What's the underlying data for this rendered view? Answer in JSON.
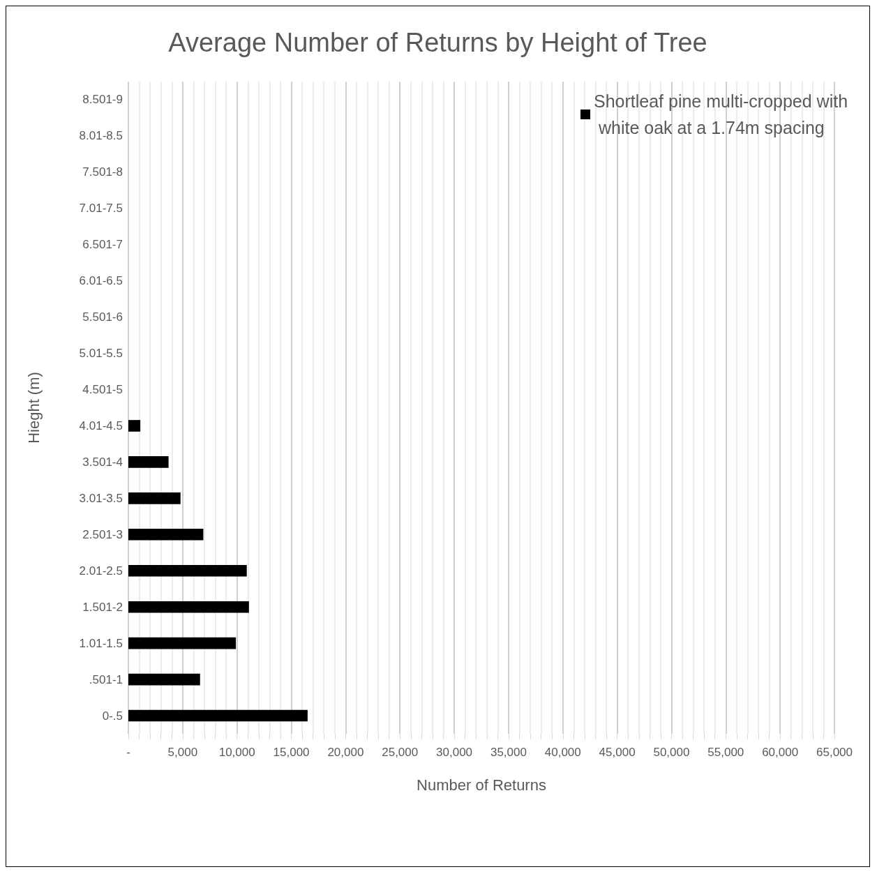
{
  "chart_data": {
    "type": "bar",
    "orientation": "horizontal",
    "title": "Average Number of Returns by Height of Tree",
    "xlabel": "Number of Returns",
    "ylabel": "Hieght (m)",
    "categories": [
      "8.501-9",
      "8.01-8.5",
      "7.501-8",
      "7.01-7.5",
      "6.501-7",
      "6.01-6.5",
      "5.501-6",
      "5.01-5.5",
      "4.501-5",
      "4.01-4.5",
      "3.501-4",
      "3.01-3.5",
      "2.501-3",
      "2.01-2.5",
      "1.501-2",
      "1.01-1.5",
      ".501-1",
      "0-.5"
    ],
    "series": [
      {
        "name": "Shortleaf pine multi-cropped with white oak at a 1.74m spacing",
        "color": "#000000",
        "values": [
          null,
          null,
          null,
          null,
          null,
          null,
          null,
          null,
          null,
          1100,
          3700,
          4800,
          6900,
          10900,
          11100,
          9900,
          6600,
          16500
        ]
      }
    ],
    "xlim": [
      0,
      65000
    ],
    "xticks": [
      {
        "value": 0,
        "label": "-"
      },
      {
        "value": 1000,
        "label": null
      },
      {
        "value": 2000,
        "label": null
      },
      {
        "value": 3000,
        "label": null
      },
      {
        "value": 4000,
        "label": null
      },
      {
        "value": 5000,
        "label": "5,000"
      },
      {
        "value": 6000,
        "label": null
      },
      {
        "value": 7000,
        "label": null
      },
      {
        "value": 8000,
        "label": null
      },
      {
        "value": 9000,
        "label": null
      },
      {
        "value": 10000,
        "label": "10,000"
      },
      {
        "value": 11000,
        "label": null
      },
      {
        "value": 12000,
        "label": null
      },
      {
        "value": 13000,
        "label": null
      },
      {
        "value": 14000,
        "label": null
      },
      {
        "value": 15000,
        "label": "15,000"
      },
      {
        "value": 16000,
        "label": null
      },
      {
        "value": 17000,
        "label": null
      },
      {
        "value": 18000,
        "label": null
      },
      {
        "value": 19000,
        "label": null
      },
      {
        "value": 20000,
        "label": "20,000"
      },
      {
        "value": 21000,
        "label": null
      },
      {
        "value": 22000,
        "label": null
      },
      {
        "value": 23000,
        "label": null
      },
      {
        "value": 24000,
        "label": null
      },
      {
        "value": 25000,
        "label": "25,000"
      },
      {
        "value": 26000,
        "label": null
      },
      {
        "value": 27000,
        "label": null
      },
      {
        "value": 28000,
        "label": null
      },
      {
        "value": 29000,
        "label": null
      },
      {
        "value": 30000,
        "label": "30,000"
      },
      {
        "value": 31000,
        "label": null
      },
      {
        "value": 32000,
        "label": null
      },
      {
        "value": 33000,
        "label": null
      },
      {
        "value": 34000,
        "label": null
      },
      {
        "value": 35000,
        "label": "35,000"
      },
      {
        "value": 36000,
        "label": null
      },
      {
        "value": 37000,
        "label": null
      },
      {
        "value": 38000,
        "label": null
      },
      {
        "value": 39000,
        "label": null
      },
      {
        "value": 40000,
        "label": "40,000"
      },
      {
        "value": 41000,
        "label": null
      },
      {
        "value": 42000,
        "label": null
      },
      {
        "value": 43000,
        "label": null
      },
      {
        "value": 44000,
        "label": null
      },
      {
        "value": 45000,
        "label": "45,000"
      },
      {
        "value": 46000,
        "label": null
      },
      {
        "value": 47000,
        "label": null
      },
      {
        "value": 48000,
        "label": null
      },
      {
        "value": 49000,
        "label": null
      },
      {
        "value": 50000,
        "label": "50,000"
      },
      {
        "value": 51000,
        "label": null
      },
      {
        "value": 52000,
        "label": null
      },
      {
        "value": 53000,
        "label": null
      },
      {
        "value": 54000,
        "label": null
      },
      {
        "value": 55000,
        "label": "55,000"
      },
      {
        "value": 56000,
        "label": null
      },
      {
        "value": 57000,
        "label": null
      },
      {
        "value": 58000,
        "label": null
      },
      {
        "value": 59000,
        "label": null
      },
      {
        "value": 60000,
        "label": "60,000"
      },
      {
        "value": 61000,
        "label": null
      },
      {
        "value": 62000,
        "label": null
      },
      {
        "value": 63000,
        "label": null
      },
      {
        "value": 64000,
        "label": null
      },
      {
        "value": 65000,
        "label": "65,000"
      }
    ],
    "grid": "x",
    "legend": "top right"
  }
}
